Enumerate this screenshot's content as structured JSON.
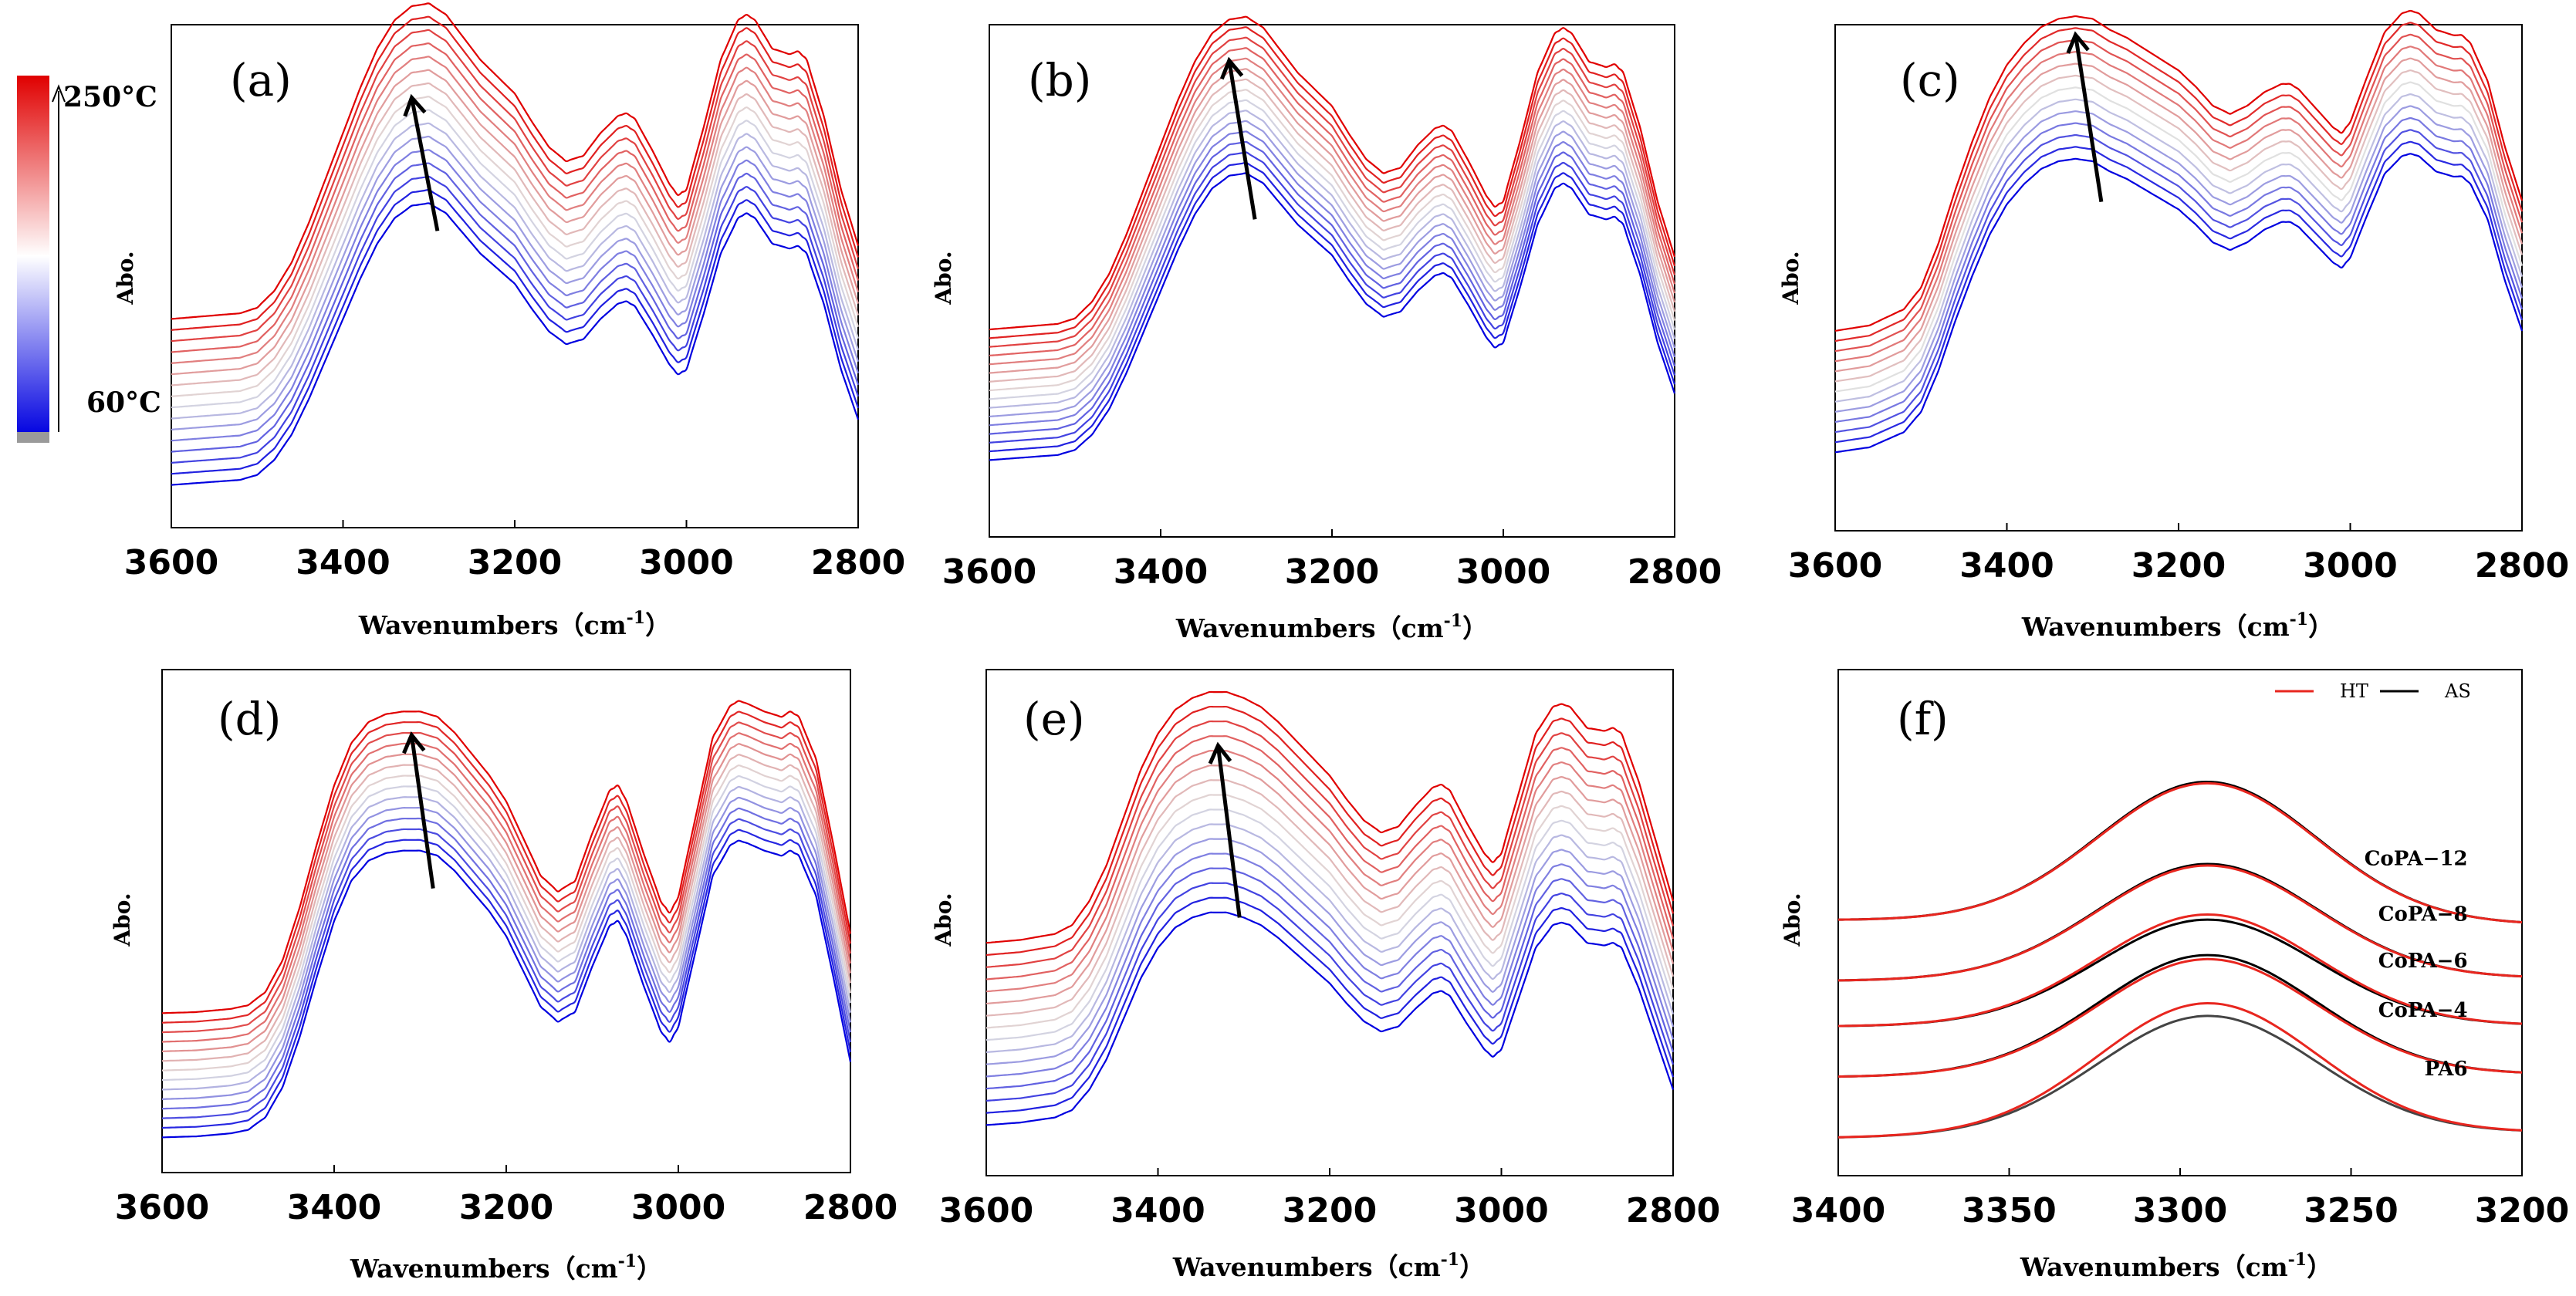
{
  "colorbar": {
    "top_label": "250°C",
    "bottom_label": "60°C",
    "colors": [
      "#e00000",
      "#ffffff",
      "#0000e0"
    ]
  },
  "arrow_color": "#000000",
  "chart_data": [
    {
      "id": "a",
      "type": "line",
      "panel_label": "(a)",
      "xlabel": "Wavenumbers（cm-1）",
      "xlabel_main": "Wavenumbers（cm",
      "xlabel_sup": "-1",
      "xlabel_end": "）",
      "ylabel": "Abo.",
      "xlim": [
        3600,
        2800
      ],
      "ylim": [
        0,
        10
      ],
      "xticks": [
        "3600",
        "3400",
        "3200",
        "3000",
        "2800"
      ],
      "n_curves": 16,
      "base_offset": 0.85,
      "step": 0.22,
      "amp_base": 1.0,
      "amp_step": 0.008,
      "peak_shift": 0.0,
      "arrow": [
        [
          3290,
          5.9
        ],
        [
          3320,
          8.55
        ]
      ],
      "x": [
        3600,
        3560,
        3520,
        3500,
        3480,
        3460,
        3440,
        3420,
        3400,
        3380,
        3360,
        3340,
        3320,
        3300,
        3280,
        3260,
        3240,
        3220,
        3200,
        3180,
        3160,
        3140,
        3120,
        3100,
        3080,
        3070,
        3060,
        3040,
        3020,
        3010,
        3000,
        2980,
        2960,
        2940,
        2930,
        2920,
        2900,
        2880,
        2870,
        2860,
        2840,
        2820,
        2800
      ],
      "y": [
        0.0,
        0.05,
        0.1,
        0.2,
        0.5,
        1.0,
        1.7,
        2.5,
        3.3,
        4.1,
        4.8,
        5.3,
        5.55,
        5.6,
        5.4,
        5.0,
        4.6,
        4.3,
        4.0,
        3.5,
        3.05,
        2.8,
        2.9,
        3.3,
        3.6,
        3.65,
        3.55,
        3.0,
        2.4,
        2.2,
        2.3,
        3.4,
        4.6,
        5.3,
        5.4,
        5.3,
        4.8,
        4.7,
        4.75,
        4.6,
        3.6,
        2.3,
        1.3
      ]
    },
    {
      "id": "b",
      "type": "line",
      "panel_label": "(b)",
      "xlabel": "Wavenumbers（cm-1）",
      "xlabel_main": "Wavenumbers（cm",
      "xlabel_sup": "-1",
      "xlabel_end": "）",
      "ylabel": "Abo.",
      "xlim": [
        3600,
        2800
      ],
      "ylim": [
        0,
        10
      ],
      "xticks": [
        "3600",
        "3400",
        "3200",
        "3000",
        "2800"
      ],
      "n_curves": 16,
      "base_offset": 1.5,
      "step": 0.17,
      "amp_base": 1.0,
      "amp_step": 0.006,
      "peak_shift": 0.0,
      "arrow": [
        [
          3290,
          6.2
        ],
        [
          3320,
          9.3
        ]
      ],
      "x": [
        3600,
        3560,
        3520,
        3500,
        3480,
        3460,
        3440,
        3420,
        3400,
        3380,
        3360,
        3340,
        3320,
        3300,
        3280,
        3260,
        3240,
        3220,
        3200,
        3180,
        3160,
        3140,
        3120,
        3100,
        3080,
        3070,
        3060,
        3040,
        3020,
        3010,
        3000,
        2980,
        2960,
        2940,
        2930,
        2920,
        2900,
        2880,
        2870,
        2860,
        2840,
        2820,
        2800
      ],
      "y": [
        0.0,
        0.05,
        0.1,
        0.2,
        0.5,
        1.0,
        1.7,
        2.5,
        3.3,
        4.1,
        4.8,
        5.3,
        5.55,
        5.6,
        5.4,
        5.0,
        4.6,
        4.3,
        4.0,
        3.5,
        3.05,
        2.8,
        2.9,
        3.3,
        3.6,
        3.65,
        3.55,
        3.0,
        2.4,
        2.2,
        2.3,
        3.4,
        4.6,
        5.3,
        5.4,
        5.3,
        4.8,
        4.7,
        4.75,
        4.6,
        3.6,
        2.3,
        1.3
      ]
    },
    {
      "id": "c",
      "type": "line",
      "panel_label": "(c)",
      "xlabel": "Wavenumbers（cm-1）",
      "xlabel_main": "Wavenumbers（cm",
      "xlabel_sup": "-1",
      "xlabel_end": "）",
      "ylabel": "Abo.",
      "xlim": [
        3600,
        2800
      ],
      "ylim": [
        0,
        10
      ],
      "xticks": [
        "3600",
        "3400",
        "3200",
        "3000",
        "2800"
      ],
      "n_curves": 13,
      "base_offset": 1.55,
      "step": 0.2,
      "amp_base": 1.0,
      "amp_step": 0.006,
      "peak_shift": 0.0,
      "arrow": [
        [
          3290,
          6.5
        ],
        [
          3320,
          9.8
        ]
      ],
      "x": [
        3600,
        3560,
        3520,
        3500,
        3480,
        3460,
        3440,
        3420,
        3400,
        3380,
        3360,
        3340,
        3320,
        3300,
        3280,
        3260,
        3240,
        3220,
        3200,
        3180,
        3160,
        3140,
        3120,
        3100,
        3080,
        3070,
        3060,
        3040,
        3020,
        3010,
        3000,
        2980,
        2960,
        2940,
        2930,
        2920,
        2900,
        2880,
        2870,
        2860,
        2840,
        2820,
        2800
      ],
      "y": [
        0.0,
        0.1,
        0.4,
        0.8,
        1.6,
        2.6,
        3.5,
        4.3,
        4.9,
        5.3,
        5.6,
        5.75,
        5.8,
        5.75,
        5.55,
        5.4,
        5.2,
        5.0,
        4.8,
        4.5,
        4.15,
        4.0,
        4.15,
        4.4,
        4.55,
        4.55,
        4.45,
        4.1,
        3.75,
        3.65,
        3.85,
        4.7,
        5.5,
        5.85,
        5.9,
        5.85,
        5.55,
        5.45,
        5.45,
        5.3,
        4.6,
        3.4,
        2.4
      ]
    },
    {
      "id": "d",
      "type": "line",
      "panel_label": "(d)",
      "xlabel": "Wavenumbers（cm-1）",
      "xlabel_main": "Wavenumbers（cm",
      "xlabel_sup": "-1",
      "xlabel_end": "）",
      "ylabel": "Abo.",
      "xlim": [
        3600,
        2800
      ],
      "ylim": [
        0,
        10
      ],
      "xticks": [
        "3600",
        "3400",
        "3200",
        "3000",
        "2800"
      ],
      "n_curves": 14,
      "base_offset": 0.7,
      "step": 0.19,
      "amp_base": 1.0,
      "amp_step": 0.004,
      "peak_shift": 0.0,
      "arrow": [
        [
          3285,
          5.65
        ],
        [
          3310,
          8.7
        ]
      ],
      "x": [
        3600,
        3560,
        3520,
        3500,
        3480,
        3460,
        3440,
        3420,
        3400,
        3380,
        3360,
        3340,
        3320,
        3300,
        3280,
        3260,
        3240,
        3220,
        3200,
        3180,
        3160,
        3140,
        3120,
        3100,
        3080,
        3070,
        3060,
        3040,
        3020,
        3010,
        3000,
        2980,
        2960,
        2940,
        2930,
        2920,
        2900,
        2880,
        2870,
        2860,
        2840,
        2820,
        2800
      ],
      "y": [
        0.0,
        0.02,
        0.08,
        0.15,
        0.4,
        1.0,
        2.0,
        3.2,
        4.3,
        5.1,
        5.5,
        5.65,
        5.7,
        5.7,
        5.6,
        5.3,
        4.9,
        4.5,
        4.0,
        3.3,
        2.6,
        2.3,
        2.5,
        3.4,
        4.2,
        4.3,
        4.0,
        3.0,
        2.1,
        1.9,
        2.2,
        3.7,
        5.2,
        5.8,
        5.9,
        5.85,
        5.7,
        5.6,
        5.7,
        5.6,
        4.8,
        3.2,
        1.5
      ]
    },
    {
      "id": "e",
      "type": "line",
      "panel_label": "(e)",
      "xlabel": "Wavenumbers（cm-1）",
      "xlabel_main": "Wavenumbers（cm",
      "xlabel_sup": "-1",
      "xlabel_end": "）",
      "ylabel": "Abo.",
      "xlim": [
        3600,
        2800
      ],
      "ylim": [
        0,
        10
      ],
      "xticks": [
        "3600",
        "3400",
        "3200",
        "3000",
        "2800"
      ],
      "n_curves": 16,
      "base_offset": 1.0,
      "step": 0.24,
      "amp_base": 1.0,
      "amp_step": 0.012,
      "peak_shift": 0.0,
      "arrow": [
        [
          3305,
          5.1
        ],
        [
          3330,
          8.5
        ]
      ],
      "x": [
        3600,
        3560,
        3520,
        3500,
        3480,
        3460,
        3440,
        3420,
        3400,
        3380,
        3360,
        3340,
        3320,
        3300,
        3280,
        3260,
        3240,
        3220,
        3200,
        3180,
        3160,
        3140,
        3120,
        3100,
        3080,
        3070,
        3060,
        3040,
        3020,
        3010,
        3000,
        2980,
        2960,
        2940,
        2930,
        2920,
        2900,
        2880,
        2870,
        2860,
        2840,
        2820,
        2800
      ],
      "y": [
        0.0,
        0.05,
        0.15,
        0.3,
        0.7,
        1.3,
        2.1,
        2.9,
        3.5,
        3.9,
        4.1,
        4.2,
        4.2,
        4.1,
        3.95,
        3.7,
        3.4,
        3.1,
        2.8,
        2.4,
        2.05,
        1.85,
        1.95,
        2.3,
        2.6,
        2.65,
        2.55,
        2.0,
        1.5,
        1.35,
        1.5,
        2.5,
        3.5,
        3.95,
        4.0,
        3.95,
        3.6,
        3.55,
        3.6,
        3.5,
        2.7,
        1.7,
        0.7
      ]
    },
    {
      "id": "f",
      "type": "line",
      "panel_label": "(f)",
      "xlabel": "Wavenumbers（cm-1）",
      "xlabel_main": "Wavenumbers（cm",
      "xlabel_sup": "-1",
      "xlabel_end": "）",
      "ylabel": "Abo.",
      "xlim": [
        3400,
        3200
      ],
      "ylim": [
        0,
        10
      ],
      "xticks": [
        "3400",
        "3350",
        "3300",
        "3250",
        "3200"
      ],
      "legend": [
        {
          "name": "HT",
          "color": "#e8261f"
        },
        {
          "name": "AS",
          "color": "#000000"
        }
      ],
      "samples": [
        {
          "name": "CoPA−12",
          "offset": 5.05,
          "ht_amp": 2.75,
          "as_amp": 2.78,
          "end": 4.8
        },
        {
          "name": "CoPA−8",
          "offset": 3.85,
          "ht_amp": 2.25,
          "as_amp": 2.28,
          "end": 4.0
        },
        {
          "name": "CoPA−6",
          "offset": 2.95,
          "ht_amp": 2.2,
          "as_amp": 2.1,
          "end": 3.0
        },
        {
          "name": "CoPA−4",
          "offset": 1.95,
          "ht_amp": 2.3,
          "as_amp": 2.38,
          "end": 2.1
        },
        {
          "name": "PA6",
          "offset": 0.75,
          "ht_amp": 2.6,
          "as_amp": 2.35,
          "end": 1.05
        }
      ],
      "x_center": 3292,
      "width": 32
    }
  ]
}
